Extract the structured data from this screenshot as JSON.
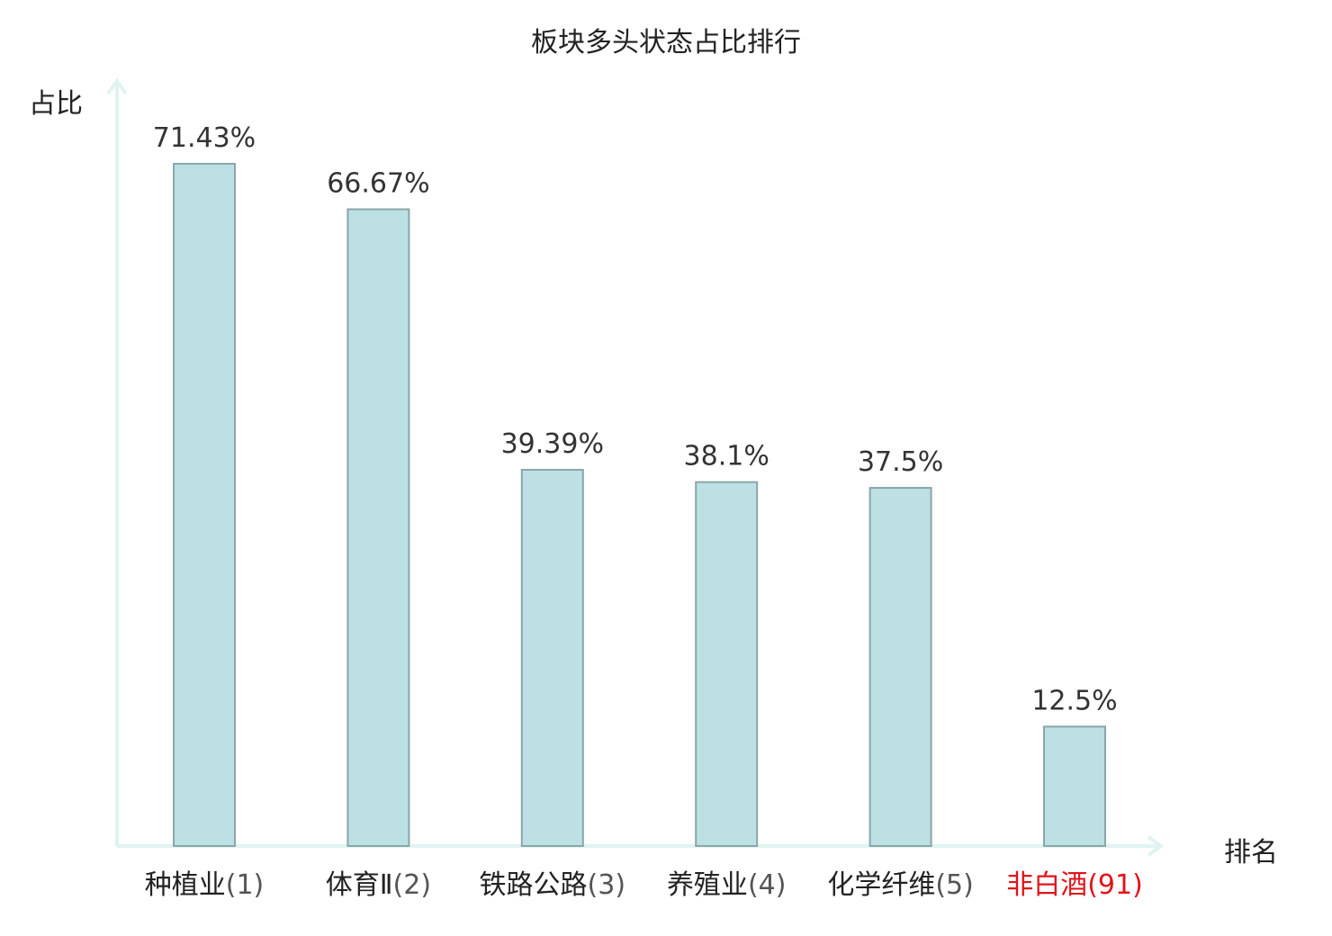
{
  "chart_data": {
    "type": "bar",
    "title": "板块多头状态占比排行",
    "xlabel": "排名",
    "ylabel": "占比",
    "ylim": [
      0,
      80
    ],
    "grid": false,
    "legend": "none",
    "categories": [
      "种植业",
      "体育Ⅱ",
      "铁路公路",
      "养殖业",
      "化学纤维",
      "非白酒"
    ],
    "ranks": [
      "(1)",
      "(2)",
      "(3)",
      "(4)",
      "(5)",
      "(91)"
    ],
    "values": [
      71.43,
      66.67,
      39.39,
      38.1,
      37.5,
      12.5
    ],
    "value_labels": [
      "71.43%",
      "66.67%",
      "39.39%",
      "38.1%",
      "37.5%",
      "12.5%"
    ],
    "highlight_index": 5,
    "colors": {
      "bar_fill": "#bce0e3",
      "bar_stroke": "#8aa6a8",
      "axis": "#e0f3f1",
      "text": "#222222",
      "value_text": "#333333",
      "highlight": "#e0141a"
    }
  }
}
